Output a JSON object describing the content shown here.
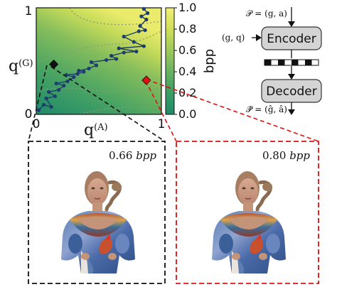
{
  "chart_data": {
    "type": "heatmap",
    "xlabel": "q^(A)",
    "ylabel": "q^(G)",
    "x_ticks": [
      "0",
      "1"
    ],
    "y_ticks": [
      "0",
      "1"
    ],
    "xlim": [
      0,
      1
    ],
    "ylim": [
      0,
      1
    ],
    "colorbar": {
      "label": "bpp",
      "range": [
        0.0,
        1.0
      ],
      "ticks": [
        "0.0",
        "0.2",
        "0.4",
        "0.6",
        "0.8",
        "1.0"
      ],
      "colors": [
        "#1e8a68",
        "#3a9e65",
        "#69b260",
        "#9dc95a",
        "#cfdf58",
        "#f1ef74"
      ]
    },
    "path": [
      [
        0.02,
        0.04
      ],
      [
        0.06,
        0.09
      ],
      [
        0.12,
        0.07
      ],
      [
        0.08,
        0.15
      ],
      [
        0.15,
        0.17
      ],
      [
        0.1,
        0.21
      ],
      [
        0.18,
        0.23
      ],
      [
        0.22,
        0.27
      ],
      [
        0.16,
        0.29
      ],
      [
        0.25,
        0.31
      ],
      [
        0.3,
        0.35
      ],
      [
        0.24,
        0.37
      ],
      [
        0.33,
        0.38
      ],
      [
        0.38,
        0.4
      ],
      [
        0.34,
        0.41
      ],
      [
        0.42,
        0.43
      ],
      [
        0.48,
        0.46
      ],
      [
        0.44,
        0.49
      ],
      [
        0.56,
        0.51
      ],
      [
        0.64,
        0.52
      ],
      [
        0.6,
        0.55
      ],
      [
        0.7,
        0.58
      ],
      [
        0.8,
        0.59
      ],
      [
        0.66,
        0.62
      ],
      [
        0.86,
        0.64
      ],
      [
        0.78,
        0.68
      ],
      [
        0.7,
        0.73
      ],
      [
        0.82,
        0.78
      ],
      [
        0.87,
        0.79
      ],
      [
        0.83,
        0.83
      ],
      [
        0.88,
        0.89
      ],
      [
        0.84,
        0.92
      ],
      [
        0.89,
        0.95
      ],
      [
        0.86,
        0.99
      ]
    ],
    "markers": [
      {
        "name": "black-diamond",
        "x": 0.14,
        "y": 0.47,
        "color": "#111111"
      },
      {
        "name": "red-diamond",
        "x": 0.88,
        "y": 0.32,
        "color": "#dd1111"
      }
    ]
  },
  "diagram": {
    "input_top": "𝒫 = (g, a)",
    "input_left": "(g, q)",
    "encoder_label": "Encoder",
    "decoder_label": "Decoder",
    "output": "𝒫̂ = (ĝ, â)"
  },
  "panels": [
    {
      "bpp_value": "0.66",
      "bpp_unit": "bpp",
      "border_color": "#111111"
    },
    {
      "bpp_value": "0.80",
      "bpp_unit": "bpp",
      "border_color": "#dd1111"
    }
  ]
}
